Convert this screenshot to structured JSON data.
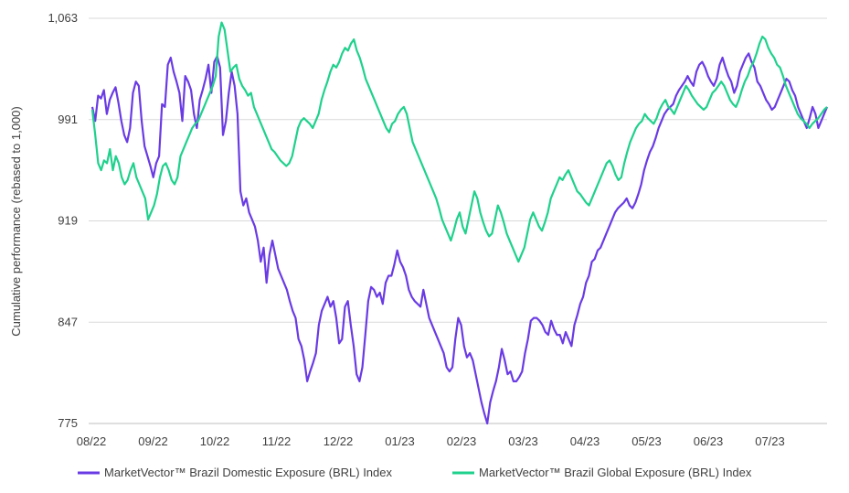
{
  "chart_data": {
    "type": "line",
    "title": "",
    "xlabel": "",
    "ylabel": "Cumulative performance (rebased to 1,000)",
    "ylim": [
      775,
      1063
    ],
    "yticks": [
      775,
      847,
      919,
      991,
      1063
    ],
    "ytick_labels": [
      "775",
      "847",
      "919",
      "991",
      "1,063"
    ],
    "x_tick_labels": [
      "08/22",
      "09/22",
      "10/22",
      "11/22",
      "12/22",
      "01/23",
      "02/23",
      "03/23",
      "04/23",
      "05/23",
      "06/23",
      "07/23"
    ],
    "grid": true,
    "legend_position": "bottom",
    "series": [
      {
        "name": "MarketVector™ Brazil Domestic Exposure (BRL) Index",
        "color": "#6a3be4",
        "values": [
          1000,
          990,
          1008,
          1006,
          1012,
          995,
          1005,
          1010,
          1014,
          1003,
          990,
          980,
          975,
          985,
          1010,
          1018,
          1015,
          990,
          972,
          965,
          958,
          950,
          960,
          965,
          1002,
          1000,
          1030,
          1035,
          1025,
          1018,
          1010,
          990,
          1022,
          1018,
          1012,
          995,
          985,
          1005,
          1012,
          1020,
          1030,
          1010,
          1032,
          1036,
          1028,
          980,
          990,
          1010,
          1025,
          1015,
          995,
          940,
          930,
          935,
          925,
          920,
          915,
          905,
          890,
          900,
          875,
          895,
          905,
          895,
          885,
          880,
          875,
          870,
          862,
          855,
          850,
          835,
          830,
          820,
          805,
          812,
          818,
          825,
          845,
          855,
          860,
          865,
          858,
          862,
          850,
          832,
          835,
          858,
          862,
          845,
          830,
          810,
          805,
          815,
          838,
          862,
          872,
          870,
          865,
          868,
          860,
          875,
          880,
          880,
          888,
          898,
          890,
          886,
          880,
          870,
          865,
          862,
          860,
          858,
          870,
          860,
          850,
          845,
          840,
          835,
          830,
          825,
          815,
          812,
          815,
          835,
          850,
          845,
          830,
          822,
          825,
          820,
          810,
          800,
          790,
          782,
          775,
          790,
          798,
          805,
          815,
          828,
          820,
          810,
          812,
          805,
          805,
          808,
          812,
          825,
          835,
          848,
          850,
          850,
          848,
          845,
          840,
          838,
          848,
          842,
          838,
          838,
          832,
          840,
          835,
          830,
          845,
          852,
          860,
          865,
          875,
          880,
          890,
          892,
          898,
          900,
          905,
          910,
          915,
          920,
          925,
          928,
          930,
          932,
          935,
          930,
          928,
          932,
          938,
          945,
          955,
          962,
          968,
          972,
          978,
          985,
          990,
          995,
          998,
          1000,
          1002,
          1008,
          1012,
          1015,
          1018,
          1022,
          1018,
          1015,
          1025,
          1030,
          1032,
          1028,
          1022,
          1018,
          1015,
          1020,
          1030,
          1035,
          1028,
          1022,
          1018,
          1010,
          1015,
          1025,
          1030,
          1035,
          1038,
          1032,
          1028,
          1018,
          1015,
          1010,
          1005,
          1002,
          998,
          1000,
          1005,
          1010,
          1015,
          1020,
          1018,
          1012,
          1008,
          1000,
          995,
          990,
          985,
          992,
          1000,
          995,
          985,
          990,
          995,
          1000
        ]
      },
      {
        "name": "MarketVector™ Brazil Global Exposure (BRL) Index",
        "color": "#1fd18c",
        "values": [
          998,
          980,
          960,
          955,
          962,
          960,
          970,
          955,
          965,
          960,
          950,
          945,
          948,
          955,
          960,
          950,
          945,
          940,
          935,
          920,
          925,
          930,
          938,
          950,
          958,
          960,
          955,
          948,
          945,
          950,
          965,
          970,
          975,
          980,
          985,
          988,
          990,
          995,
          1000,
          1005,
          1010,
          1015,
          1022,
          1050,
          1060,
          1055,
          1040,
          1025,
          1028,
          1030,
          1020,
          1015,
          1012,
          1008,
          1010,
          1000,
          995,
          990,
          985,
          980,
          975,
          970,
          968,
          965,
          962,
          960,
          958,
          960,
          965,
          975,
          985,
          990,
          992,
          990,
          988,
          985,
          990,
          995,
          1005,
          1012,
          1018,
          1025,
          1030,
          1028,
          1032,
          1038,
          1042,
          1040,
          1045,
          1048,
          1040,
          1035,
          1028,
          1020,
          1015,
          1010,
          1005,
          1000,
          995,
          990,
          985,
          982,
          988,
          990,
          995,
          998,
          1000,
          995,
          985,
          975,
          970,
          965,
          960,
          955,
          950,
          945,
          940,
          935,
          928,
          920,
          915,
          910,
          905,
          912,
          920,
          925,
          915,
          910,
          920,
          930,
          940,
          935,
          925,
          918,
          912,
          908,
          910,
          920,
          930,
          925,
          918,
          910,
          905,
          900,
          895,
          890,
          895,
          900,
          910,
          920,
          925,
          920,
          915,
          912,
          918,
          925,
          935,
          940,
          945,
          950,
          948,
          952,
          955,
          950,
          945,
          940,
          938,
          935,
          932,
          930,
          935,
          940,
          945,
          950,
          955,
          960,
          962,
          958,
          952,
          948,
          950,
          960,
          968,
          975,
          980,
          985,
          988,
          990,
          995,
          992,
          990,
          988,
          992,
          998,
          1002,
          1005,
          1000,
          998,
          995,
          1000,
          1005,
          1010,
          1015,
          1012,
          1008,
          1005,
          1002,
          1000,
          998,
          1000,
          1005,
          1010,
          1012,
          1015,
          1018,
          1015,
          1010,
          1005,
          1002,
          1000,
          1005,
          1012,
          1018,
          1022,
          1028,
          1032,
          1038,
          1045,
          1050,
          1048,
          1042,
          1038,
          1035,
          1030,
          1028,
          1022,
          1015,
          1010,
          1005,
          1000,
          995,
          992,
          990,
          988,
          985,
          988,
          990,
          992,
          995,
          998,
          1000
        ]
      }
    ]
  }
}
